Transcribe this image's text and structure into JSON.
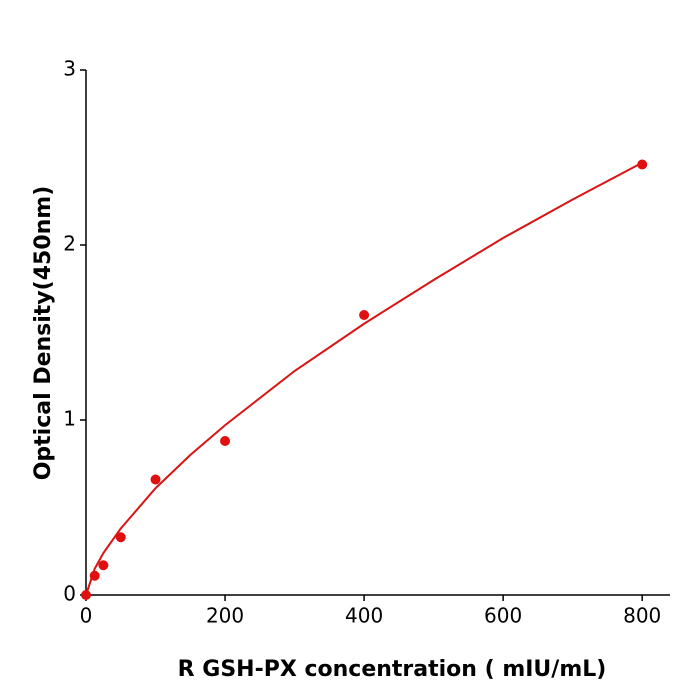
{
  "chart_data": {
    "type": "scatter",
    "x_label": "R  GSH-PX concentration ( mIU/mL)",
    "y_label": "Optical Density(450nm)",
    "xlim": [
      0,
      840
    ],
    "xticks": [
      0,
      200,
      400,
      600,
      800
    ],
    "ylim": [
      0,
      3
    ],
    "yticks": [
      0,
      1,
      2,
      3
    ],
    "series": [
      {
        "mode": "markers",
        "color": "#e01010",
        "x": [
          0,
          12.5,
          25,
          50,
          100,
          200,
          400,
          800
        ],
        "values": [
          0.0,
          0.11,
          0.17,
          0.33,
          0.66,
          0.88,
          1.6,
          2.46
        ]
      },
      {
        "mode": "line",
        "color": "#d81414",
        "x": [
          0,
          12.5,
          25,
          50,
          100,
          150,
          200,
          300,
          400,
          500,
          600,
          700,
          800
        ],
        "values": [
          0,
          0.15,
          0.24,
          0.38,
          0.61,
          0.8,
          0.97,
          1.28,
          1.55,
          1.8,
          2.04,
          2.26,
          2.47
        ]
      }
    ]
  }
}
